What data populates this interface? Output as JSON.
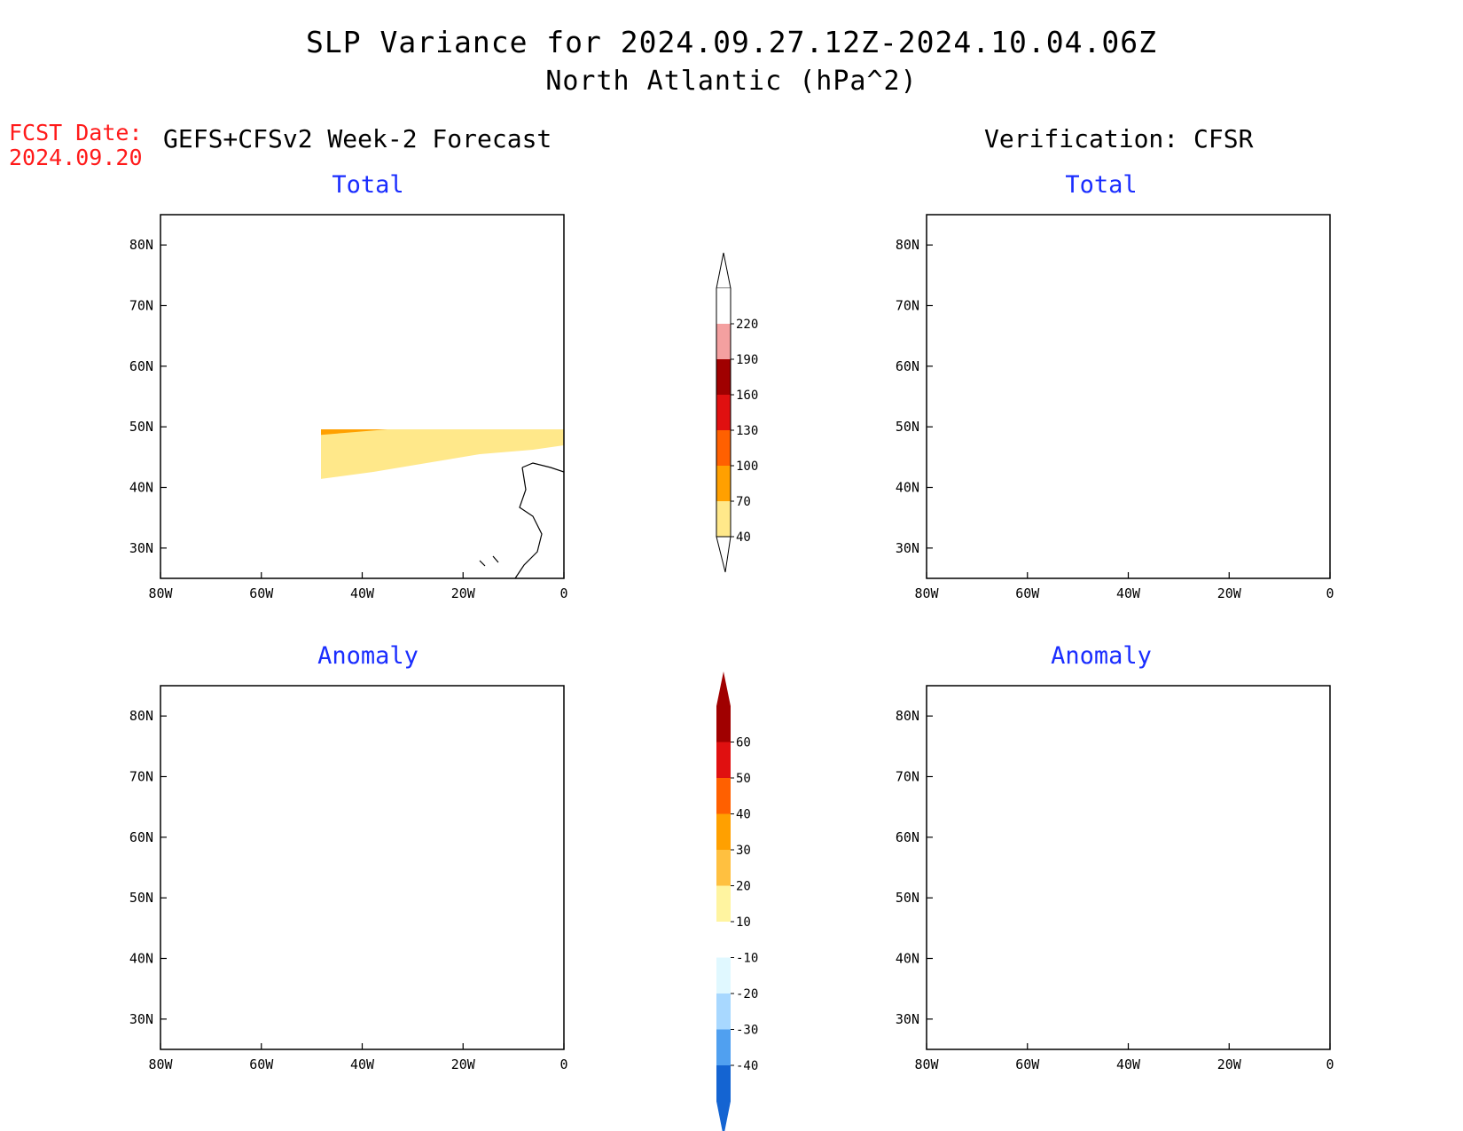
{
  "header": {
    "title": "SLP Variance for 2024.09.27.12Z-2024.10.04.06Z",
    "subtitle": "North Atlantic (hPa^2)",
    "fcst_label": "FCST Date:",
    "fcst_date": "2024.09.20"
  },
  "columns": {
    "left": "GEFS+CFSv2 Week-2 Forecast",
    "right": "Verification: CFSR"
  },
  "panels": {
    "top_left": "Total",
    "top_right": "Total",
    "bottom_left": "Anomaly",
    "bottom_right": "Anomaly"
  },
  "axes": {
    "lat_labels": [
      "80N",
      "70N",
      "60N",
      "50N",
      "40N",
      "30N"
    ],
    "lon_labels": [
      "80W",
      "60W",
      "40W",
      "20W",
      "0"
    ],
    "lat_values": [
      80,
      70,
      60,
      50,
      40,
      30
    ],
    "lon_values": [
      -80,
      -60,
      -40,
      -20,
      0
    ],
    "lat_range": [
      25,
      85
    ],
    "lon_range": [
      -80,
      0
    ]
  },
  "colorbars": {
    "total": {
      "labels": [
        "220",
        "190",
        "160",
        "130",
        "100",
        "70",
        "40"
      ],
      "colors": [
        "#ffffff",
        "#f4a0a0",
        "#a00000",
        "#e01010",
        "#ff6000",
        "#ffa000",
        "#ffe88a"
      ]
    },
    "anomaly": {
      "labels": [
        "60",
        "50",
        "40",
        "30",
        "20",
        "10",
        "-10",
        "-20",
        "-30",
        "-40"
      ],
      "colors": [
        "#a00000",
        "#e01010",
        "#ff6000",
        "#ffa000",
        "#ffc040",
        "#fff4a0",
        "#ffffff",
        "#e0f8ff",
        "#a8d8ff",
        "#50a0f0",
        "#1464d2"
      ]
    }
  },
  "legend_colors": {
    "yellow": "#ffe88a",
    "orange": "#ffa000",
    "dark_orange": "#ff6000",
    "red": "#e01010",
    "dark_red": "#a00000",
    "pink": "#f4a0a0",
    "very_light_blue": "#e0f8ff",
    "light_blue": "#a8d8ff",
    "medium_blue": "#50a0f0",
    "dark_blue": "#1464d2"
  }
}
